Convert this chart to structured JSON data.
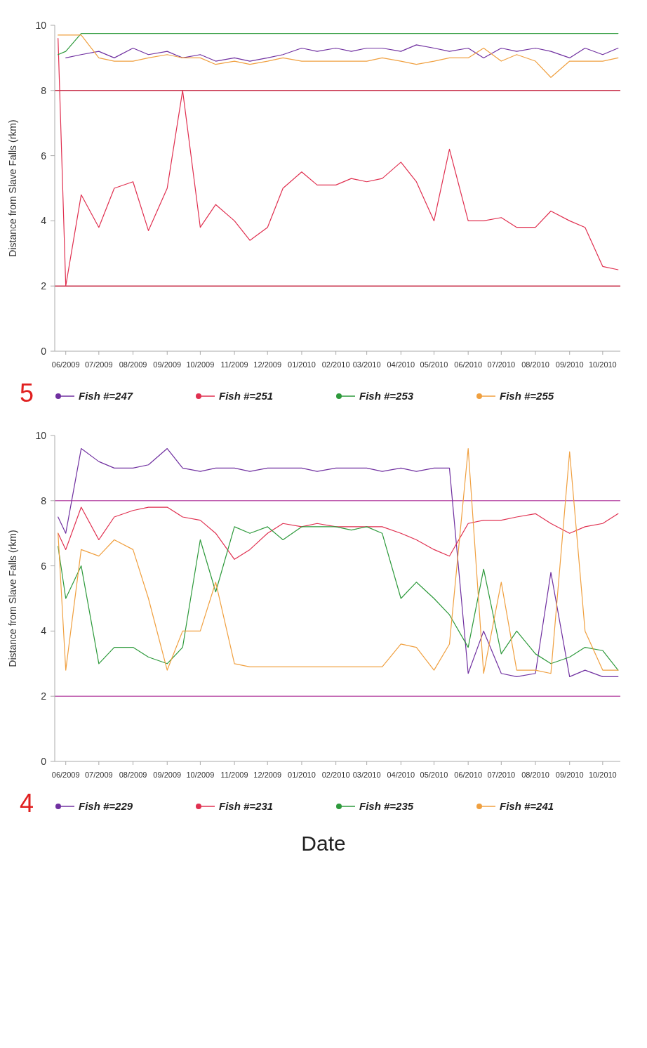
{
  "chart_data": [
    {
      "type": "line",
      "ylabel": "Distance from Slave Falls (rkm)",
      "annotations": [
        "5"
      ],
      "x": [
        "2009-05-25",
        "2009-06-01",
        "2009-06-15",
        "2009-07-01",
        "2009-07-15",
        "2009-08-01",
        "2009-08-15",
        "2009-09-01",
        "2009-09-15",
        "2009-10-01",
        "2009-10-15",
        "2009-11-01",
        "2009-11-15",
        "2009-12-01",
        "2009-12-15",
        "2010-01-01",
        "2010-01-15",
        "2010-02-01",
        "2010-02-15",
        "2010-03-01",
        "2010-03-15",
        "2010-04-01",
        "2010-04-15",
        "2010-05-01",
        "2010-05-15",
        "2010-06-01",
        "2010-06-15",
        "2010-07-01",
        "2010-07-15",
        "2010-08-01",
        "2010-08-15",
        "2010-09-01",
        "2010-09-15",
        "2010-10-01",
        "2010-10-15"
      ],
      "series": [
        {
          "name": "Fish #=247",
          "color": "#7030a0",
          "values": [
            null,
            9.0,
            9.1,
            9.2,
            9.0,
            9.3,
            9.1,
            9.2,
            9.0,
            9.1,
            8.9,
            9.0,
            8.9,
            9.0,
            9.1,
            9.3,
            9.2,
            9.3,
            9.2,
            9.3,
            9.3,
            9.2,
            9.4,
            9.3,
            9.2,
            9.3,
            9.0,
            9.3,
            9.2,
            9.3,
            9.2,
            9.0,
            9.3,
            9.1,
            9.3
          ]
        },
        {
          "name": "Fish #=251",
          "color": "#e03050",
          "values": [
            9.6,
            2.0,
            4.8,
            3.8,
            5.0,
            5.2,
            3.7,
            5.0,
            8.0,
            3.8,
            4.5,
            4.0,
            3.4,
            3.8,
            5.0,
            5.5,
            5.1,
            5.1,
            5.3,
            5.2,
            5.3,
            5.8,
            5.2,
            4.0,
            6.2,
            4.0,
            4.0,
            4.1,
            3.8,
            3.8,
            4.3,
            4.0,
            3.8,
            2.6,
            2.5
          ]
        },
        {
          "name": "Fish #=253",
          "color": "#2e9a3c",
          "values": [
            9.1,
            9.2,
            9.75,
            9.75,
            9.75,
            9.75,
            9.75,
            9.75,
            9.75,
            9.75,
            9.75,
            9.75,
            9.75,
            9.75,
            9.75,
            9.75,
            9.75,
            9.75,
            9.75,
            9.75,
            9.75,
            9.75,
            9.75,
            9.75,
            9.75,
            9.75,
            9.75,
            9.75,
            9.75,
            9.75,
            9.75,
            9.75,
            9.75,
            9.75,
            9.75
          ]
        },
        {
          "name": "Fish #=255",
          "color": "#f0a040",
          "values": [
            9.7,
            9.7,
            9.7,
            9.0,
            8.9,
            8.9,
            9.0,
            9.1,
            9.0,
            9.0,
            8.8,
            8.9,
            8.8,
            8.9,
            9.0,
            8.9,
            8.9,
            8.9,
            8.9,
            8.9,
            9.0,
            8.9,
            8.8,
            8.9,
            9.0,
            9.0,
            9.3,
            8.9,
            9.1,
            8.9,
            8.4,
            8.9,
            8.9,
            8.9,
            9.0
          ]
        }
      ],
      "xlim": [
        "2009-05-22",
        "2010-10-17"
      ],
      "xticks": [
        {
          "value": "2009-06-01",
          "label": "06/2009"
        },
        {
          "value": "2009-07-01",
          "label": "07/2009"
        },
        {
          "value": "2009-08-01",
          "label": "08/2009"
        },
        {
          "value": "2009-09-01",
          "label": "09/2009"
        },
        {
          "value": "2009-10-01",
          "label": "10/2009"
        },
        {
          "value": "2009-11-01",
          "label": "11/2009"
        },
        {
          "value": "2009-12-01",
          "label": "12/2009"
        },
        {
          "value": "2010-01-01",
          "label": "01/2010"
        },
        {
          "value": "2010-02-01",
          "label": "02/2010"
        },
        {
          "value": "2010-03-01",
          "label": "03/2010"
        },
        {
          "value": "2010-04-01",
          "label": "04/2010"
        },
        {
          "value": "2010-05-01",
          "label": "05/2010"
        },
        {
          "value": "2010-06-01",
          "label": "06/2010"
        },
        {
          "value": "2010-07-01",
          "label": "07/2010"
        },
        {
          "value": "2010-08-01",
          "label": "08/2010"
        },
        {
          "value": "2010-09-01",
          "label": "09/2010"
        },
        {
          "value": "2010-10-01",
          "label": "10/2010"
        }
      ],
      "ylim": [
        0,
        10
      ],
      "yticks": [
        0,
        2,
        4,
        6,
        8,
        10
      ],
      "ref_lines": [
        {
          "axis": "y",
          "value": 8,
          "color": "#c8304a"
        },
        {
          "axis": "y",
          "value": 2,
          "color": "#c8304a"
        }
      ],
      "legend": "bottom",
      "line_style": "solid"
    },
    {
      "type": "line",
      "ylabel": "Distance from Slave Falls (rkm)",
      "xlabel": "Date",
      "annotations": [
        "4"
      ],
      "x": [
        "2009-05-25",
        "2009-06-01",
        "2009-06-15",
        "2009-07-01",
        "2009-07-15",
        "2009-08-01",
        "2009-08-15",
        "2009-09-01",
        "2009-09-15",
        "2009-10-01",
        "2009-10-15",
        "2009-11-01",
        "2009-11-15",
        "2009-12-01",
        "2009-12-15",
        "2010-01-01",
        "2010-01-15",
        "2010-02-01",
        "2010-02-15",
        "2010-03-01",
        "2010-03-15",
        "2010-04-01",
        "2010-04-15",
        "2010-05-01",
        "2010-05-15",
        "2010-06-01",
        "2010-06-15",
        "2010-07-01",
        "2010-07-15",
        "2010-08-01",
        "2010-08-15",
        "2010-09-01",
        "2010-09-15",
        "2010-10-01",
        "2010-10-15"
      ],
      "series": [
        {
          "name": "Fish #=229",
          "color": "#7030a0",
          "values": [
            7.5,
            7.0,
            9.6,
            9.2,
            9.0,
            9.0,
            9.1,
            9.6,
            9.0,
            8.9,
            9.0,
            9.0,
            8.9,
            9.0,
            9.0,
            9.0,
            8.9,
            9.0,
            9.0,
            9.0,
            8.9,
            9.0,
            8.9,
            9.0,
            9.0,
            2.7,
            4.0,
            2.7,
            2.6,
            2.7,
            5.8,
            2.6,
            2.8,
            2.6,
            2.6
          ]
        },
        {
          "name": "Fish #=231",
          "color": "#e03050",
          "values": [
            7.0,
            6.5,
            7.8,
            6.8,
            7.5,
            7.7,
            7.8,
            7.8,
            7.5,
            7.4,
            7.0,
            6.2,
            6.5,
            7.0,
            7.3,
            7.2,
            7.3,
            7.2,
            7.2,
            7.2,
            7.2,
            7.0,
            6.8,
            6.5,
            6.3,
            7.3,
            7.4,
            7.4,
            7.5,
            7.6,
            7.3,
            7.0,
            7.2,
            7.3,
            7.6
          ]
        },
        {
          "name": "Fish #=235",
          "color": "#2e9a3c",
          "values": [
            6.6,
            5.0,
            6.0,
            3.0,
            3.5,
            3.5,
            3.2,
            3.0,
            3.5,
            6.8,
            5.2,
            7.2,
            7.0,
            7.2,
            6.8,
            7.2,
            7.2,
            7.2,
            7.1,
            7.2,
            7.0,
            5.0,
            5.5,
            5.0,
            4.5,
            3.5,
            5.9,
            3.3,
            4.0,
            3.3,
            3.0,
            3.2,
            3.5,
            3.4,
            2.8
          ]
        },
        {
          "name": "Fish #=241",
          "color": "#f0a040",
          "values": [
            7.0,
            2.8,
            6.5,
            6.3,
            6.8,
            6.5,
            5.0,
            2.8,
            4.0,
            4.0,
            5.5,
            3.0,
            2.9,
            2.9,
            2.9,
            2.9,
            2.9,
            2.9,
            2.9,
            2.9,
            2.9,
            3.6,
            3.5,
            2.8,
            3.6,
            9.6,
            2.7,
            5.5,
            2.8,
            2.8,
            2.7,
            9.5,
            4.0,
            2.8,
            2.8
          ]
        }
      ],
      "xlim": [
        "2009-05-22",
        "2010-10-17"
      ],
      "xticks": [
        {
          "value": "2009-06-01",
          "label": "06/2009"
        },
        {
          "value": "2009-07-01",
          "label": "07/2009"
        },
        {
          "value": "2009-08-01",
          "label": "08/2009"
        },
        {
          "value": "2009-09-01",
          "label": "09/2009"
        },
        {
          "value": "2009-10-01",
          "label": "10/2009"
        },
        {
          "value": "2009-11-01",
          "label": "11/2009"
        },
        {
          "value": "2009-12-01",
          "label": "12/2009"
        },
        {
          "value": "2010-01-01",
          "label": "01/2010"
        },
        {
          "value": "2010-02-01",
          "label": "02/2010"
        },
        {
          "value": "2010-03-01",
          "label": "03/2010"
        },
        {
          "value": "2010-04-01",
          "label": "04/2010"
        },
        {
          "value": "2010-05-01",
          "label": "05/2010"
        },
        {
          "value": "2010-06-01",
          "label": "06/2010"
        },
        {
          "value": "2010-07-01",
          "label": "07/2010"
        },
        {
          "value": "2010-08-01",
          "label": "08/2010"
        },
        {
          "value": "2010-09-01",
          "label": "09/2010"
        },
        {
          "value": "2010-10-01",
          "label": "10/2010"
        }
      ],
      "ylim": [
        0,
        10
      ],
      "yticks": [
        0,
        2,
        4,
        6,
        8,
        10
      ],
      "ref_lines": [
        {
          "axis": "y",
          "value": 8,
          "color": "#c060b0"
        },
        {
          "axis": "y",
          "value": 2,
          "color": "#c060b0"
        }
      ],
      "legend": "bottom",
      "line_style": "solid"
    }
  ]
}
